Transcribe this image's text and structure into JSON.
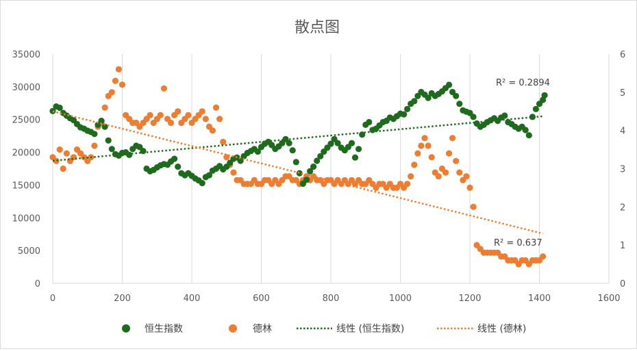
{
  "chart_data": {
    "type": "scatter",
    "title": "散点图",
    "xlim": [
      0,
      1600
    ],
    "ylim_left": [
      0,
      35000
    ],
    "ylim_right": [
      0,
      6
    ],
    "x_ticks": [
      "0",
      "200",
      "400",
      "600",
      "800",
      "1000",
      "1200",
      "1400",
      "1600"
    ],
    "y_left_ticks": [
      "0",
      "5000",
      "10000",
      "15000",
      "20000",
      "25000",
      "30000",
      "35000"
    ],
    "y_right_ticks": [
      "0",
      "1",
      "2",
      "3",
      "4",
      "5",
      "6"
    ],
    "grid": "vertical",
    "legend_position": "bottom",
    "legend": {
      "series1": "恒生指数",
      "series2": "德林",
      "trend1": "线性 (恒生指数)",
      "trend2": "线性 (德林)"
    },
    "r2_labels": {
      "series1": "R² = 0.2894",
      "series2": "R² = 0.637"
    },
    "colors": {
      "series1": "#1e6b1e",
      "series2": "#ed7d31",
      "grid": "#d9d9d9",
      "text": "#595959"
    },
    "series": [
      {
        "name": "恒生指数",
        "axis": "left",
        "points": [
          [
            0,
            26300
          ],
          [
            10,
            27000
          ],
          [
            20,
            26800
          ],
          [
            30,
            26000
          ],
          [
            40,
            25600
          ],
          [
            50,
            25200
          ],
          [
            60,
            24900
          ],
          [
            70,
            24300
          ],
          [
            80,
            23800
          ],
          [
            90,
            23600
          ],
          [
            100,
            23300
          ],
          [
            110,
            23100
          ],
          [
            120,
            22800
          ],
          [
            130,
            24200
          ],
          [
            140,
            24800
          ],
          [
            150,
            23900
          ],
          [
            160,
            21800
          ],
          [
            170,
            20500
          ],
          [
            180,
            19700
          ],
          [
            190,
            19500
          ],
          [
            200,
            19900
          ],
          [
            210,
            20000
          ],
          [
            220,
            19600
          ],
          [
            230,
            20500
          ],
          [
            240,
            21000
          ],
          [
            250,
            20800
          ],
          [
            260,
            20200
          ],
          [
            270,
            17500
          ],
          [
            280,
            17100
          ],
          [
            290,
            17300
          ],
          [
            300,
            17700
          ],
          [
            310,
            18000
          ],
          [
            320,
            18200
          ],
          [
            330,
            18100
          ],
          [
            340,
            18600
          ],
          [
            350,
            19000
          ],
          [
            360,
            17800
          ],
          [
            370,
            16800
          ],
          [
            380,
            16500
          ],
          [
            390,
            16800
          ],
          [
            400,
            16400
          ],
          [
            410,
            16000
          ],
          [
            420,
            15700
          ],
          [
            430,
            15300
          ],
          [
            440,
            16200
          ],
          [
            450,
            16500
          ],
          [
            460,
            17200
          ],
          [
            470,
            17500
          ],
          [
            480,
            17900
          ],
          [
            490,
            17400
          ],
          [
            500,
            17800
          ],
          [
            510,
            18400
          ],
          [
            520,
            19000
          ],
          [
            530,
            19200
          ],
          [
            540,
            18700
          ],
          [
            550,
            19400
          ],
          [
            560,
            19900
          ],
          [
            570,
            20200
          ],
          [
            580,
            20500
          ],
          [
            590,
            20100
          ],
          [
            600,
            20800
          ],
          [
            610,
            21300
          ],
          [
            620,
            21600
          ],
          [
            630,
            21100
          ],
          [
            640,
            20500
          ],
          [
            650,
            20900
          ],
          [
            660,
            21400
          ],
          [
            670,
            22000
          ],
          [
            680,
            21400
          ],
          [
            690,
            20300
          ],
          [
            700,
            18500
          ],
          [
            710,
            16800
          ],
          [
            720,
            15200
          ],
          [
            730,
            15800
          ],
          [
            740,
            17100
          ],
          [
            750,
            17800
          ],
          [
            760,
            18700
          ],
          [
            770,
            19400
          ],
          [
            780,
            20100
          ],
          [
            790,
            20700
          ],
          [
            800,
            21300
          ],
          [
            810,
            22000
          ],
          [
            820,
            21400
          ],
          [
            830,
            20700
          ],
          [
            840,
            20300
          ],
          [
            850,
            20800
          ],
          [
            860,
            21400
          ],
          [
            870,
            19200
          ],
          [
            880,
            20500
          ],
          [
            890,
            22700
          ],
          [
            900,
            24200
          ],
          [
            910,
            24600
          ],
          [
            920,
            23400
          ],
          [
            930,
            23600
          ],
          [
            940,
            24100
          ],
          [
            950,
            24600
          ],
          [
            960,
            24800
          ],
          [
            970,
            25300
          ],
          [
            980,
            25100
          ],
          [
            990,
            25500
          ],
          [
            1000,
            25900
          ],
          [
            1010,
            25800
          ],
          [
            1020,
            26600
          ],
          [
            1030,
            27400
          ],
          [
            1040,
            27800
          ],
          [
            1050,
            28600
          ],
          [
            1060,
            29200
          ],
          [
            1070,
            28800
          ],
          [
            1080,
            28300
          ],
          [
            1090,
            29000
          ],
          [
            1100,
            28600
          ],
          [
            1110,
            28900
          ],
          [
            1120,
            29300
          ],
          [
            1130,
            29800
          ],
          [
            1140,
            30300
          ],
          [
            1150,
            29200
          ],
          [
            1160,
            28600
          ],
          [
            1170,
            27400
          ],
          [
            1180,
            26400
          ],
          [
            1190,
            26200
          ],
          [
            1200,
            26000
          ],
          [
            1210,
            25400
          ],
          [
            1220,
            24400
          ],
          [
            1230,
            23900
          ],
          [
            1240,
            24200
          ],
          [
            1250,
            24600
          ],
          [
            1260,
            24900
          ],
          [
            1270,
            25200
          ],
          [
            1280,
            24800
          ],
          [
            1290,
            25300
          ],
          [
            1300,
            25600
          ],
          [
            1310,
            24600
          ],
          [
            1320,
            24300
          ],
          [
            1330,
            23900
          ],
          [
            1340,
            23600
          ],
          [
            1350,
            23900
          ],
          [
            1360,
            23400
          ],
          [
            1370,
            22600
          ],
          [
            1380,
            25400
          ],
          [
            1390,
            26600
          ],
          [
            1400,
            27400
          ],
          [
            1410,
            28000
          ],
          [
            1415,
            28700
          ]
        ]
      },
      {
        "name": "德林",
        "axis": "right",
        "points": [
          [
            0,
            3.3
          ],
          [
            10,
            3.2
          ],
          [
            20,
            3.5
          ],
          [
            30,
            3.0
          ],
          [
            40,
            3.4
          ],
          [
            50,
            3.2
          ],
          [
            60,
            3.3
          ],
          [
            70,
            3.5
          ],
          [
            80,
            3.4
          ],
          [
            90,
            3.3
          ],
          [
            100,
            3.2
          ],
          [
            110,
            3.3
          ],
          [
            120,
            3.6
          ],
          [
            130,
            4.1
          ],
          [
            140,
            4.2
          ],
          [
            150,
            4.6
          ],
          [
            160,
            4.9
          ],
          [
            170,
            5.0
          ],
          [
            180,
            5.3
          ],
          [
            190,
            5.6
          ],
          [
            200,
            5.2
          ],
          [
            210,
            4.4
          ],
          [
            220,
            4.3
          ],
          [
            230,
            4.2
          ],
          [
            240,
            4.2
          ],
          [
            250,
            4.1
          ],
          [
            260,
            4.2
          ],
          [
            270,
            4.3
          ],
          [
            280,
            4.4
          ],
          [
            290,
            4.2
          ],
          [
            300,
            4.3
          ],
          [
            310,
            4.4
          ],
          [
            320,
            5.1
          ],
          [
            330,
            4.3
          ],
          [
            340,
            4.2
          ],
          [
            350,
            4.4
          ],
          [
            360,
            4.5
          ],
          [
            370,
            4.2
          ],
          [
            380,
            4.3
          ],
          [
            390,
            4.4
          ],
          [
            400,
            4.2
          ],
          [
            410,
            4.3
          ],
          [
            420,
            4.4
          ],
          [
            430,
            4.5
          ],
          [
            440,
            4.3
          ],
          [
            450,
            4.1
          ],
          [
            460,
            4.0
          ],
          [
            470,
            4.6
          ],
          [
            480,
            4.3
          ],
          [
            490,
            3.7
          ],
          [
            500,
            3.3
          ],
          [
            510,
            3.1
          ],
          [
            520,
            2.9
          ],
          [
            530,
            2.7
          ],
          [
            540,
            2.7
          ],
          [
            550,
            2.6
          ],
          [
            560,
            2.6
          ],
          [
            570,
            2.6
          ],
          [
            580,
            2.7
          ],
          [
            590,
            2.6
          ],
          [
            600,
            2.6
          ],
          [
            610,
            2.7
          ],
          [
            620,
            2.7
          ],
          [
            630,
            2.6
          ],
          [
            640,
            2.7
          ],
          [
            650,
            2.6
          ],
          [
            660,
            2.7
          ],
          [
            670,
            2.8
          ],
          [
            680,
            2.8
          ],
          [
            690,
            2.7
          ],
          [
            700,
            2.7
          ],
          [
            710,
            2.6
          ],
          [
            720,
            2.7
          ],
          [
            730,
            2.8
          ],
          [
            740,
            2.7
          ],
          [
            750,
            2.8
          ],
          [
            760,
            2.7
          ],
          [
            770,
            2.7
          ],
          [
            780,
            2.6
          ],
          [
            790,
            2.7
          ],
          [
            800,
            2.7
          ],
          [
            810,
            2.6
          ],
          [
            820,
            2.7
          ],
          [
            830,
            2.6
          ],
          [
            840,
            2.7
          ],
          [
            850,
            2.6
          ],
          [
            860,
            2.7
          ],
          [
            870,
            2.6
          ],
          [
            880,
            2.7
          ],
          [
            890,
            2.6
          ],
          [
            900,
            2.6
          ],
          [
            910,
            2.7
          ],
          [
            920,
            2.6
          ],
          [
            930,
            2.5
          ],
          [
            940,
            2.6
          ],
          [
            950,
            2.6
          ],
          [
            960,
            2.5
          ],
          [
            970,
            2.6
          ],
          [
            980,
            2.5
          ],
          [
            990,
            2.5
          ],
          [
            1000,
            2.6
          ],
          [
            1010,
            2.5
          ],
          [
            1020,
            2.6
          ],
          [
            1030,
            2.8
          ],
          [
            1040,
            3.1
          ],
          [
            1050,
            3.4
          ],
          [
            1060,
            3.6
          ],
          [
            1070,
            3.8
          ],
          [
            1080,
            3.6
          ],
          [
            1090,
            3.3
          ],
          [
            1100,
            2.9
          ],
          [
            1110,
            2.8
          ],
          [
            1120,
            3.0
          ],
          [
            1130,
            2.9
          ],
          [
            1140,
            3.4
          ],
          [
            1150,
            3.8
          ],
          [
            1160,
            3.2
          ],
          [
            1170,
            2.9
          ],
          [
            1180,
            2.7
          ],
          [
            1190,
            2.8
          ],
          [
            1200,
            2.5
          ],
          [
            1210,
            2.0
          ],
          [
            1220,
            1.0
          ],
          [
            1230,
            0.9
          ],
          [
            1240,
            0.8
          ],
          [
            1250,
            0.8
          ],
          [
            1260,
            0.8
          ],
          [
            1270,
            0.8
          ],
          [
            1280,
            0.8
          ],
          [
            1290,
            0.7
          ],
          [
            1300,
            0.7
          ],
          [
            1310,
            0.6
          ],
          [
            1320,
            0.6
          ],
          [
            1330,
            0.6
          ],
          [
            1340,
            0.5
          ],
          [
            1350,
            0.6
          ],
          [
            1360,
            0.6
          ],
          [
            1370,
            0.5
          ],
          [
            1380,
            0.6
          ],
          [
            1390,
            0.6
          ],
          [
            1400,
            0.6
          ],
          [
            1410,
            0.7
          ]
        ]
      }
    ],
    "trendlines": [
      {
        "series": "恒生指数",
        "axis": "left",
        "from": [
          0,
          18700
        ],
        "to": [
          1410,
          25500
        ]
      },
      {
        "series": "德林",
        "axis": "right",
        "from": [
          0,
          4.5
        ],
        "to": [
          1410,
          1.3
        ]
      }
    ]
  }
}
